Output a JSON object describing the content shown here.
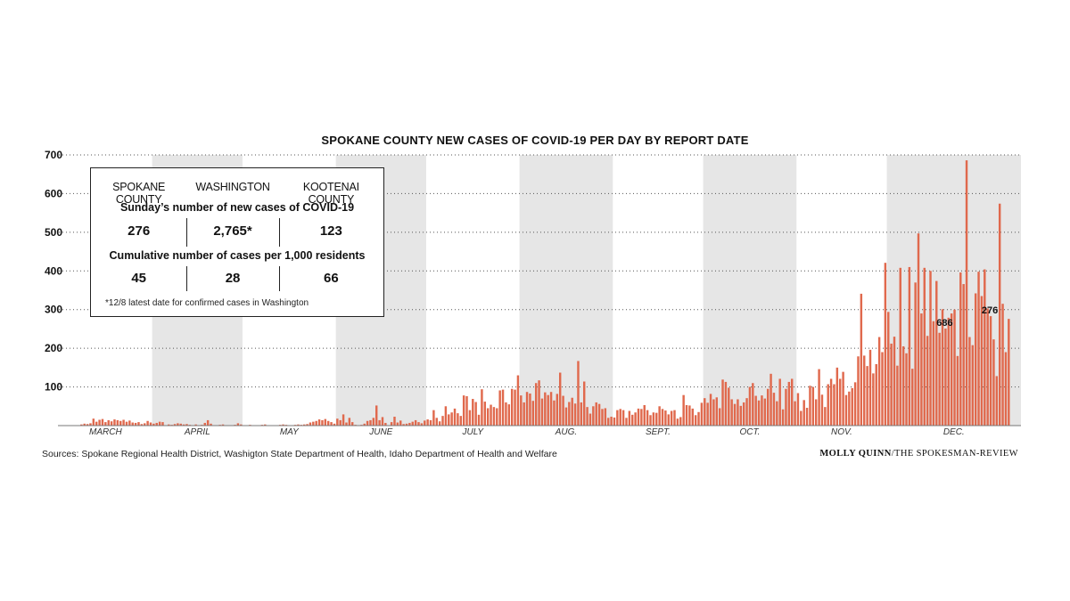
{
  "chart_data": {
    "type": "bar",
    "title": "SPOKANE COUNTY NEW CASES OF COVID-19 PER DAY BY REPORT DATE",
    "ylim": [
      0,
      700
    ],
    "yticks": [
      100,
      200,
      300,
      400,
      500,
      600,
      700
    ],
    "grid": "dotted horizontal",
    "month_labels": [
      "MARCH",
      "APRIL",
      "MAY",
      "JUNE",
      "JULY",
      "AUG.",
      "SEPT.",
      "OCT.",
      "NOV.",
      "DEC."
    ],
    "annotations": [
      {
        "label": "686",
        "day": 294
      },
      {
        "label": "276",
        "day": 309
      }
    ],
    "bar_color": "#e0694d",
    "band_color": "#e6e6e6",
    "values": [
      0,
      0,
      0,
      0,
      0,
      0,
      0,
      3,
      5,
      4,
      6,
      18,
      10,
      15,
      17,
      9,
      14,
      11,
      16,
      14,
      12,
      15,
      10,
      13,
      8,
      7,
      9,
      4,
      6,
      12,
      8,
      5,
      7,
      10,
      9,
      1,
      3,
      2,
      4,
      6,
      5,
      3,
      4,
      2,
      1,
      3,
      0,
      2,
      7,
      14,
      5,
      0,
      1,
      2,
      3,
      1,
      0,
      1,
      2,
      6,
      3,
      1,
      0,
      2,
      1,
      0,
      0,
      2,
      3,
      1,
      0,
      0,
      1,
      2,
      3,
      2,
      1,
      0,
      2,
      3,
      2,
      3,
      4,
      8,
      10,
      12,
      16,
      14,
      17,
      12,
      9,
      5,
      18,
      14,
      29,
      8,
      20,
      9,
      2,
      1,
      2,
      5,
      12,
      14,
      20,
      52,
      14,
      22,
      7,
      0,
      9,
      23,
      8,
      13,
      4,
      5,
      7,
      10,
      14,
      9,
      6,
      13,
      16,
      14,
      40,
      20,
      11,
      25,
      50,
      29,
      34,
      44,
      32,
      25,
      78,
      76,
      40,
      69,
      61,
      28,
      94,
      62,
      45,
      54,
      48,
      45,
      91,
      93,
      60,
      55,
      95,
      93,
      130,
      78,
      60,
      87,
      83,
      64,
      110,
      117,
      70,
      86,
      79,
      87,
      65,
      82,
      137,
      77,
      47,
      61,
      72,
      57,
      167,
      60,
      114,
      48,
      31,
      50,
      60,
      56,
      43,
      45,
      20,
      23,
      21,
      40,
      43,
      40,
      20,
      38,
      28,
      34,
      44,
      43,
      53,
      40,
      27,
      34,
      33,
      50,
      43,
      39,
      29,
      38,
      40,
      18,
      22,
      79,
      53,
      52,
      44,
      27,
      35,
      59,
      71,
      59,
      82,
      68,
      73,
      45,
      119,
      113,
      98,
      68,
      56,
      68,
      51,
      60,
      71,
      100,
      110,
      77,
      65,
      78,
      70,
      95,
      134,
      85,
      63,
      121,
      42,
      95,
      113,
      121,
      63,
      84,
      38,
      66,
      46,
      103,
      100,
      68,
      146,
      80,
      48,
      107,
      121,
      107,
      150,
      121,
      139,
      79,
      88,
      97,
      112,
      179,
      341,
      181,
      154,
      196,
      135,
      159,
      229,
      190,
      421,
      294,
      212,
      230,
      155,
      408,
      205,
      187,
      410,
      147,
      370,
      497,
      290,
      408,
      232,
      400,
      270,
      374,
      240,
      301,
      251,
      279,
      290,
      300,
      180,
      396,
      366,
      686,
      229,
      208,
      342,
      398,
      335,
      404,
      303,
      283,
      223,
      128,
      574,
      315,
      190,
      276
    ]
  },
  "infobox": {
    "col1": "SPOKANE COUNTY",
    "col2": "WASHINGTON",
    "col3": "KOOTENAI COUNTY",
    "subtitle1": "Sunday’s number of new cases of COVID-19",
    "row1": [
      "276",
      "2,765*",
      "123"
    ],
    "subtitle2": "Cumulative number of cases per 1,000 residents",
    "row2": [
      "45",
      "28",
      "66"
    ],
    "note": "*12/8 latest date for confirmed cases in Washington"
  },
  "sources": "Sources: Spokane Regional Health District, Washigton State Department of Health, Idaho Department of Health and Welfare",
  "credit_name": "MOLLY QUINN",
  "credit_org": "/THE SPOKESMAN-REVIEW"
}
